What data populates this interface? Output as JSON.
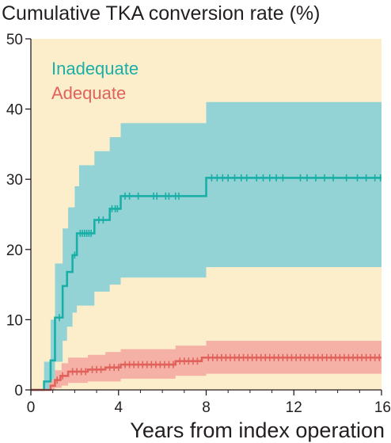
{
  "chart_data": {
    "type": "line",
    "title": "",
    "ylabel": "Cumulative TKA conversion rate (%)",
    "xlabel": "Years from index operation",
    "xlim": [
      0,
      16
    ],
    "ylim": [
      0,
      50
    ],
    "x_ticks": [
      0,
      4,
      8,
      12,
      16
    ],
    "x_tick_labels": [
      "0",
      "4",
      "8",
      "12",
      "16"
    ],
    "y_ticks": [
      0,
      10,
      20,
      30,
      40,
      50
    ],
    "y_tick_labels": [
      "0",
      "10",
      "20",
      "30",
      "40",
      "50"
    ],
    "grid": false,
    "legend_position": "top-left",
    "background_color": "#fdeecb",
    "series": [
      {
        "name": "Inadequate",
        "color": "#1aafa6",
        "band_color": "#93d3d6",
        "steps": [
          [
            0,
            0
          ],
          [
            0.6,
            0
          ],
          [
            0.6,
            1.2
          ],
          [
            0.9,
            1.2
          ],
          [
            0.9,
            4.2
          ],
          [
            1.1,
            4.2
          ],
          [
            1.1,
            10.3
          ],
          [
            1.45,
            10.3
          ],
          [
            1.45,
            14.8
          ],
          [
            1.65,
            14.8
          ],
          [
            1.65,
            16.8
          ],
          [
            1.9,
            16.8
          ],
          [
            1.9,
            19.2
          ],
          [
            2.1,
            19.2
          ],
          [
            2.1,
            22.3
          ],
          [
            2.9,
            22.3
          ],
          [
            2.9,
            24.2
          ],
          [
            3.6,
            24.2
          ],
          [
            3.6,
            25.8
          ],
          [
            4.1,
            25.8
          ],
          [
            4.1,
            27.6
          ],
          [
            8.0,
            27.6
          ],
          [
            8.0,
            30.2
          ],
          [
            16.0,
            30.2
          ]
        ],
        "ci_upper": [
          [
            0,
            0
          ],
          [
            0.6,
            0
          ],
          [
            0.6,
            4
          ],
          [
            0.9,
            4
          ],
          [
            0.9,
            10
          ],
          [
            1.1,
            10
          ],
          [
            1.1,
            18
          ],
          [
            1.45,
            18
          ],
          [
            1.45,
            23
          ],
          [
            1.7,
            23
          ],
          [
            1.7,
            26
          ],
          [
            2.0,
            26
          ],
          [
            2.0,
            29
          ],
          [
            2.2,
            29
          ],
          [
            2.2,
            32
          ],
          [
            2.9,
            32
          ],
          [
            2.9,
            34
          ],
          [
            3.6,
            34
          ],
          [
            3.6,
            36
          ],
          [
            4.1,
            36
          ],
          [
            4.1,
            38
          ],
          [
            8.0,
            38
          ],
          [
            8.0,
            41
          ],
          [
            16.0,
            41
          ]
        ],
        "ci_lower": [
          [
            0,
            0
          ],
          [
            0.9,
            0
          ],
          [
            0.9,
            1
          ],
          [
            1.1,
            1
          ],
          [
            1.1,
            4
          ],
          [
            1.45,
            4
          ],
          [
            1.45,
            7
          ],
          [
            1.65,
            7
          ],
          [
            1.65,
            9
          ],
          [
            1.9,
            9
          ],
          [
            1.9,
            11
          ],
          [
            2.1,
            11
          ],
          [
            2.1,
            12
          ],
          [
            2.9,
            12
          ],
          [
            2.9,
            14
          ],
          [
            3.6,
            14
          ],
          [
            3.6,
            15
          ],
          [
            4.1,
            15
          ],
          [
            4.1,
            16
          ],
          [
            8.0,
            16
          ],
          [
            8.0,
            17.5
          ],
          [
            16.0,
            17.5
          ]
        ],
        "censor_x": [
          1.3,
          2.0,
          2.25,
          2.35,
          2.45,
          2.55,
          2.65,
          2.75,
          3.1,
          3.3,
          3.7,
          3.85,
          3.95,
          4.3,
          4.5,
          4.9,
          5.6,
          5.75,
          6.15,
          6.3,
          6.6,
          6.75,
          8.25,
          8.5,
          8.75,
          9.0,
          9.3,
          9.6,
          9.85,
          10.3,
          10.6,
          10.9,
          11.2,
          11.5,
          12.3,
          12.6,
          13.0,
          13.4,
          13.8,
          14.4,
          14.9,
          15.3,
          15.7,
          15.95
        ]
      },
      {
        "name": "Adequate",
        "color": "#e1625c",
        "band_color": "#f5b1a5",
        "steps": [
          [
            0,
            0
          ],
          [
            0.9,
            0
          ],
          [
            0.9,
            0.6
          ],
          [
            1.1,
            0.6
          ],
          [
            1.1,
            1.4
          ],
          [
            1.35,
            1.4
          ],
          [
            1.35,
            2.0
          ],
          [
            1.7,
            2.0
          ],
          [
            1.7,
            2.6
          ],
          [
            2.6,
            2.6
          ],
          [
            2.6,
            2.9
          ],
          [
            3.4,
            2.9
          ],
          [
            3.4,
            3.2
          ],
          [
            4.1,
            3.2
          ],
          [
            4.1,
            3.6
          ],
          [
            6.6,
            3.6
          ],
          [
            6.6,
            4.1
          ],
          [
            7.8,
            4.1
          ],
          [
            7.8,
            4.6
          ],
          [
            16.0,
            4.6
          ]
        ],
        "ci_upper": [
          [
            0,
            0
          ],
          [
            0.85,
            0
          ],
          [
            0.85,
            1.5
          ],
          [
            1.1,
            1.5
          ],
          [
            1.1,
            2.8
          ],
          [
            1.4,
            2.8
          ],
          [
            1.4,
            3.8
          ],
          [
            1.7,
            3.8
          ],
          [
            1.7,
            4.6
          ],
          [
            2.6,
            4.6
          ],
          [
            2.6,
            5.0
          ],
          [
            3.4,
            5.0
          ],
          [
            3.4,
            5.4
          ],
          [
            4.1,
            5.4
          ],
          [
            4.1,
            5.8
          ],
          [
            6.6,
            5.8
          ],
          [
            6.6,
            6.3
          ],
          [
            8.0,
            6.3
          ],
          [
            8.0,
            7.0
          ],
          [
            16.0,
            7.0
          ]
        ],
        "ci_lower": [
          [
            0,
            0
          ],
          [
            1.1,
            0
          ],
          [
            1.1,
            0.3
          ],
          [
            1.4,
            0.3
          ],
          [
            1.4,
            0.6
          ],
          [
            1.7,
            0.6
          ],
          [
            1.7,
            1.0
          ],
          [
            2.6,
            1.0
          ],
          [
            2.6,
            1.2
          ],
          [
            4.1,
            1.2
          ],
          [
            4.1,
            1.6
          ],
          [
            6.6,
            1.6
          ],
          [
            6.6,
            2.0
          ],
          [
            8.0,
            2.0
          ],
          [
            8.0,
            2.3
          ],
          [
            16.0,
            2.3
          ]
        ],
        "censor_x": [
          1.2,
          1.45,
          1.9,
          2.1,
          2.3,
          2.5,
          2.8,
          3.0,
          3.2,
          3.6,
          3.8,
          4.0,
          4.3,
          4.5,
          4.7,
          4.9,
          5.1,
          5.3,
          5.5,
          5.7,
          5.9,
          6.1,
          6.3,
          6.5,
          6.8,
          7.0,
          7.2,
          7.4,
          7.6,
          8.1,
          8.3,
          8.5,
          8.7,
          8.9,
          9.1,
          9.3,
          9.5,
          9.7,
          9.9,
          10.1,
          10.3,
          10.5,
          10.7,
          10.9,
          11.1,
          11.3,
          11.5,
          11.7,
          11.9,
          12.1,
          12.3,
          12.5,
          12.7,
          12.9,
          13.1,
          13.3,
          13.5,
          13.7,
          13.9,
          14.1,
          14.3,
          14.5,
          14.7,
          14.9,
          15.1,
          15.3,
          15.5,
          15.7,
          15.9
        ]
      }
    ]
  }
}
